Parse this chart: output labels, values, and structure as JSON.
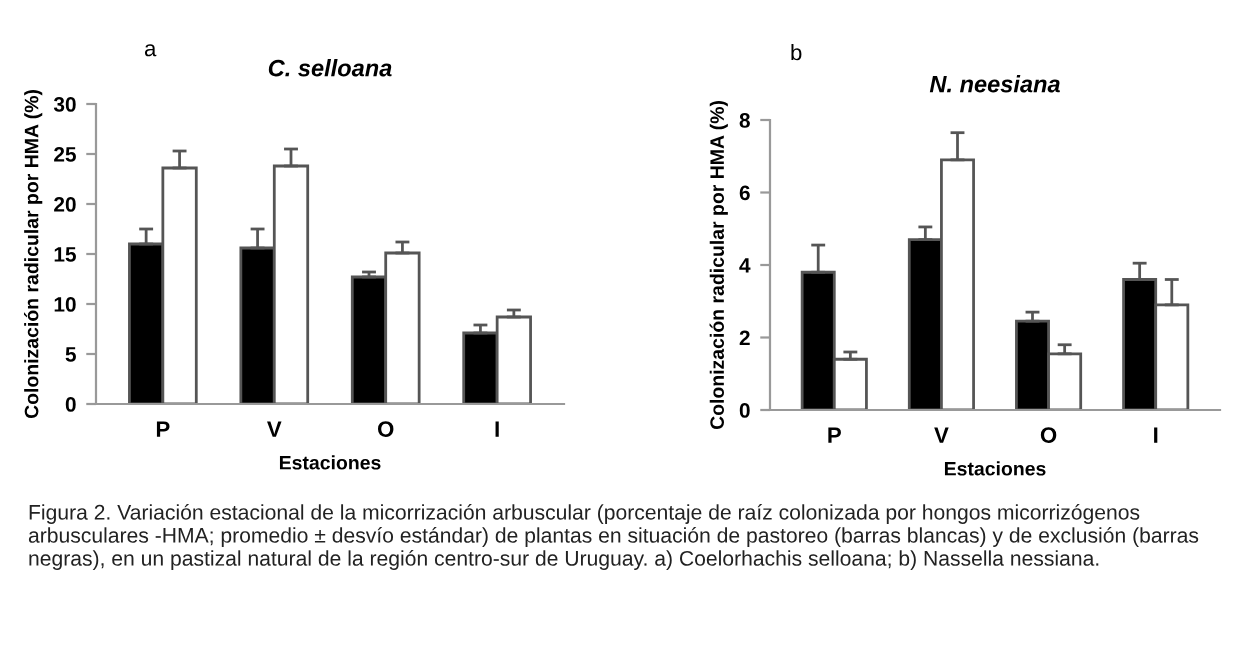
{
  "chart_data": [
    {
      "type": "bar",
      "title": "C. selloana",
      "xlabel": "Estaciones",
      "ylabel": "Colonización radicular por HMA (%)",
      "categories": [
        "P",
        "V",
        "O",
        "I"
      ],
      "series": [
        {
          "color": "#000000",
          "values": [
            16.0,
            15.6,
            12.7,
            7.1
          ],
          "errors": [
            [
              16.0,
              17.5
            ],
            [
              15.6,
              17.5
            ],
            [
              12.7,
              13.2
            ],
            [
              7.1,
              7.9
            ]
          ]
        },
        {
          "color": "#ffffff",
          "values": [
            23.6,
            23.8,
            15.1,
            8.7
          ],
          "errors": [
            [
              23.6,
              25.3
            ],
            [
              23.8,
              25.5
            ],
            [
              15.1,
              16.2
            ],
            [
              8.7,
              9.4
            ]
          ]
        }
      ],
      "ylim": [
        0,
        30
      ],
      "yticks": [
        0,
        5,
        10,
        15,
        20,
        25,
        30
      ],
      "grid": false,
      "legend": false,
      "annotations": [
        "a",
        "Figura 2. Variación estacional de la micorrización arbuscular (porcentaje de raíz colonizada por hongos micorrizógenos arbusculares -HMA; promedio ± desvío estándar) de plantas en situación de pastoreo (barras blancas) y de exclusión (barras negras), en un pastizal natural de la región centro-sur de Uruguay. a) Coelorhachis selloana; b) Nassella nessiana."
      ]
    },
    {
      "type": "bar",
      "title": "N. neesiana",
      "xlabel": "Estaciones",
      "ylabel": "Colonización radicular por HMA (%)",
      "categories": [
        "P",
        "V",
        "O",
        "I"
      ],
      "series": [
        {
          "color": "#000000",
          "values": [
            3.8,
            4.7,
            2.45,
            3.6
          ],
          "errors": [
            [
              3.8,
              4.55
            ],
            [
              4.7,
              5.05
            ],
            [
              2.45,
              2.7
            ],
            [
              3.6,
              4.05
            ]
          ]
        },
        {
          "color": "#ffffff",
          "values": [
            1.4,
            6.9,
            1.55,
            2.9
          ],
          "errors": [
            [
              1.4,
              1.6
            ],
            [
              6.9,
              7.65
            ],
            [
              1.55,
              1.8
            ],
            [
              2.9,
              3.6
            ]
          ]
        }
      ],
      "ylim": [
        0,
        8
      ],
      "yticks": [
        0,
        2,
        4,
        6,
        8
      ],
      "grid": false,
      "legend": false,
      "annotations": [
        "b"
      ]
    }
  ]
}
